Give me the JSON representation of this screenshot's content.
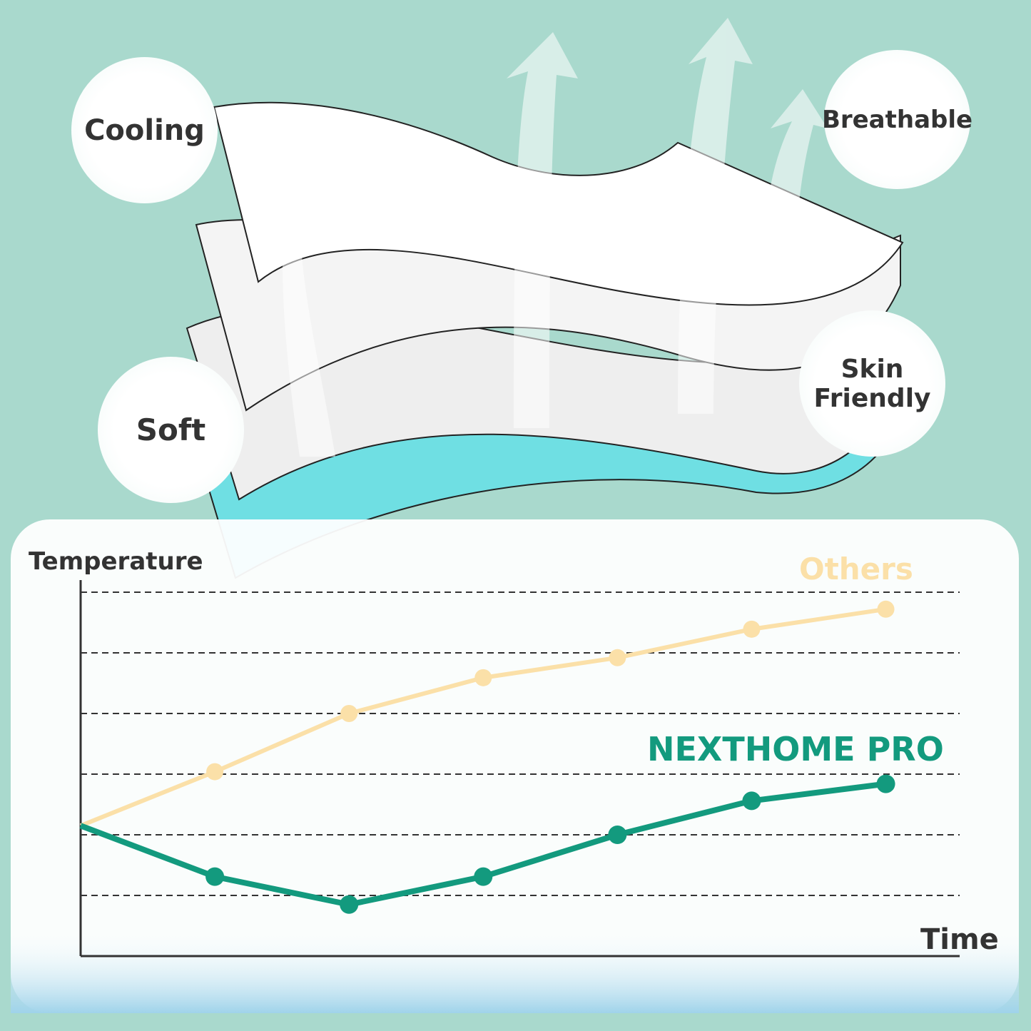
{
  "features": [
    "Cooling",
    "Breathable",
    "Soft",
    "Skin Friendly"
  ],
  "chart_data": {
    "type": "line",
    "y_label": "Temperature",
    "x_label": "Time",
    "x": [
      0,
      1,
      2,
      3,
      4,
      5,
      6
    ],
    "series": [
      {
        "name": "Others",
        "color": "#fbe0a8",
        "values": [
          2.15,
          3.04,
          4.0,
          4.59,
          4.92,
          5.39,
          5.72
        ]
      },
      {
        "name": "NEXTHOME PRO",
        "color": "#139a7e",
        "values": [
          2.15,
          1.31,
          0.85,
          1.31,
          2.0,
          2.56,
          2.84
        ]
      }
    ],
    "xlim": [
      0,
      6.55
    ],
    "ylim": [
      0,
      6.2
    ],
    "yticks": [
      1,
      2,
      3,
      4,
      5,
      6
    ],
    "grid": true
  }
}
